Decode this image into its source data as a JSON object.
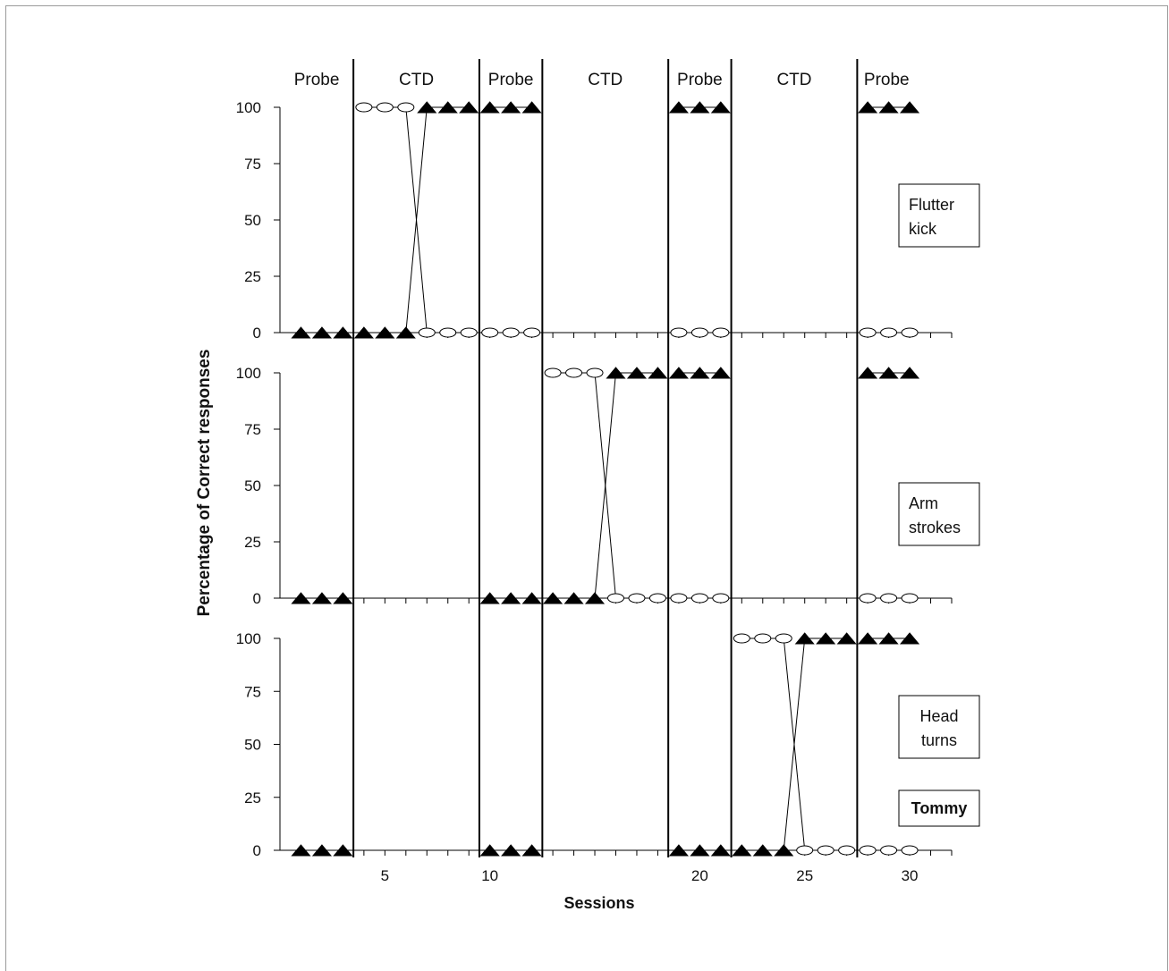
{
  "chart_data": {
    "type": "line",
    "xlabel": "Sessions",
    "ylabel": "Percentage of Correct responses",
    "x_ticks": [
      5,
      10,
      20,
      25,
      30
    ],
    "xlim": [
      0,
      32
    ],
    "ylim": [
      0,
      100
    ],
    "y_ticks": [
      0,
      25,
      50,
      75,
      100
    ],
    "grid": false,
    "phase_changes": [
      3.5,
      9.5,
      12.5,
      18.5,
      21.5,
      27.5
    ],
    "phases": [
      "Probe",
      "CTD",
      "Probe",
      "CTD",
      "Probe",
      "CTD",
      "Probe"
    ],
    "participant": "Tommy",
    "marker_colors": {
      "triangle": "#000000",
      "ellipse": "#ffffff"
    },
    "panels": [
      {
        "label": "Flutter kick",
        "series": [
          {
            "marker": "triangle",
            "points": [
              [
                1,
                0
              ],
              [
                2,
                0
              ],
              [
                3,
                0
              ],
              [
                4,
                0
              ],
              [
                5,
                0
              ],
              [
                6,
                0
              ],
              [
                7,
                100
              ],
              [
                8,
                100
              ],
              [
                9,
                100
              ],
              [
                10,
                100
              ],
              [
                11,
                100
              ],
              [
                12,
                100
              ],
              [
                19,
                100
              ],
              [
                20,
                100
              ],
              [
                21,
                100
              ],
              [
                28,
                100
              ],
              [
                29,
                100
              ],
              [
                30,
                100
              ]
            ]
          },
          {
            "marker": "ellipse",
            "points": [
              [
                4,
                100
              ],
              [
                5,
                100
              ],
              [
                6,
                100
              ],
              [
                7,
                0
              ],
              [
                8,
                0
              ],
              [
                9,
                0
              ],
              [
                10,
                0
              ],
              [
                11,
                0
              ],
              [
                12,
                0
              ],
              [
                19,
                0
              ],
              [
                20,
                0
              ],
              [
                21,
                0
              ],
              [
                28,
                0
              ],
              [
                29,
                0
              ],
              [
                30,
                0
              ]
            ]
          }
        ]
      },
      {
        "label": "Arm strokes",
        "series": [
          {
            "marker": "triangle",
            "points": [
              [
                1,
                0
              ],
              [
                2,
                0
              ],
              [
                3,
                0
              ],
              [
                10,
                0
              ],
              [
                11,
                0
              ],
              [
                12,
                0
              ],
              [
                13,
                0
              ],
              [
                14,
                0
              ],
              [
                15,
                0
              ],
              [
                16,
                100
              ],
              [
                17,
                100
              ],
              [
                18,
                100
              ],
              [
                19,
                100
              ],
              [
                20,
                100
              ],
              [
                21,
                100
              ],
              [
                28,
                100
              ],
              [
                29,
                100
              ],
              [
                30,
                100
              ]
            ]
          },
          {
            "marker": "ellipse",
            "points": [
              [
                13,
                100
              ],
              [
                14,
                100
              ],
              [
                15,
                100
              ],
              [
                16,
                0
              ],
              [
                17,
                0
              ],
              [
                18,
                0
              ],
              [
                19,
                0
              ],
              [
                20,
                0
              ],
              [
                21,
                0
              ],
              [
                28,
                0
              ],
              [
                29,
                0
              ],
              [
                30,
                0
              ]
            ]
          }
        ]
      },
      {
        "label": "Head turns",
        "series": [
          {
            "marker": "triangle",
            "points": [
              [
                1,
                0
              ],
              [
                2,
                0
              ],
              [
                3,
                0
              ],
              [
                10,
                0
              ],
              [
                11,
                0
              ],
              [
                12,
                0
              ],
              [
                19,
                0
              ],
              [
                20,
                0
              ],
              [
                21,
                0
              ],
              [
                22,
                0
              ],
              [
                23,
                0
              ],
              [
                24,
                0
              ],
              [
                25,
                100
              ],
              [
                26,
                100
              ],
              [
                27,
                100
              ],
              [
                28,
                100
              ],
              [
                29,
                100
              ],
              [
                30,
                100
              ]
            ]
          },
          {
            "marker": "ellipse",
            "points": [
              [
                22,
                100
              ],
              [
                23,
                100
              ],
              [
                24,
                100
              ],
              [
                25,
                0
              ],
              [
                26,
                0
              ],
              [
                27,
                0
              ],
              [
                28,
                0
              ],
              [
                29,
                0
              ],
              [
                30,
                0
              ]
            ]
          }
        ]
      }
    ]
  }
}
